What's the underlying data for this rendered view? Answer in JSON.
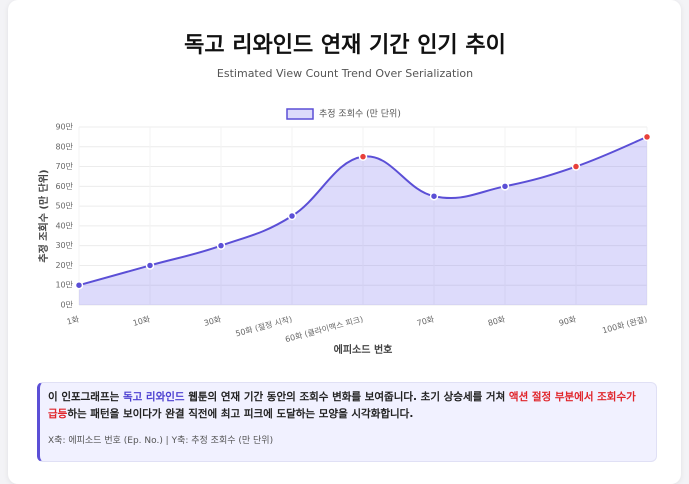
{
  "chart_data": {
    "type": "line",
    "title": "독고 리와인드 연재 기간 인기 추이",
    "subtitle": "Estimated View Count Trend Over Serialization",
    "x_label": "에피소드 번호",
    "y_label": "추정 조회수 (만 단위)",
    "categories": [
      "1화",
      "10화",
      "30화",
      "50화 (절정 시작)",
      "60화 (클라이맥스 피크)",
      "70화",
      "80화",
      "90화",
      "100화 (완결)"
    ],
    "series": [
      {
        "name": "추정 조회수 (만 단위)",
        "color": "#5b4fd6",
        "fill": "rgba(120,110,240,0.25)",
        "values": [
          10,
          20,
          30,
          45,
          75,
          55,
          60,
          70,
          85
        ],
        "point_colors": [
          "#5b4fd6",
          "#5b4fd6",
          "#5b4fd6",
          "#5b4fd6",
          "#e8403a",
          "#5b4fd6",
          "#5b4fd6",
          "#e8403a",
          "#e8403a"
        ]
      }
    ],
    "ylim": [
      0,
      90
    ],
    "yticks": [
      {
        "value": 0,
        "label": "0만"
      },
      {
        "value": 10,
        "label": "10만"
      },
      {
        "value": 20,
        "label": "20만"
      },
      {
        "value": 30,
        "label": "30만"
      },
      {
        "value": 40,
        "label": "40만"
      },
      {
        "value": 50,
        "label": "50만"
      },
      {
        "value": 60,
        "label": "60만"
      },
      {
        "value": 70,
        "label": "70만"
      },
      {
        "value": 80,
        "label": "80만"
      },
      {
        "value": 90,
        "label": "90만"
      }
    ],
    "grid": true,
    "legend": "top"
  },
  "info": {
    "segments": [
      {
        "text": "이 인포그래프는 ",
        "style": "normal"
      },
      {
        "text": "독고 리와인드",
        "style": "brand"
      },
      {
        "text": " 웹툰의 연재 기간 동안의 조회수 변화를 보여줍니다. 초기 상승세를 거쳐 ",
        "style": "normal"
      },
      {
        "text": "액션 절정 부분에서 조회수가 급등",
        "style": "alert"
      },
      {
        "text": "하는 패턴을 보이다가 완결 직전에 최고 피크에 도달하는 모양을 시각화합니다.",
        "style": "normal"
      }
    ],
    "footnote": "X축: 에피소드 번호 (Ep. No.) | Y축: 추정 조회수 (만 단위)"
  }
}
